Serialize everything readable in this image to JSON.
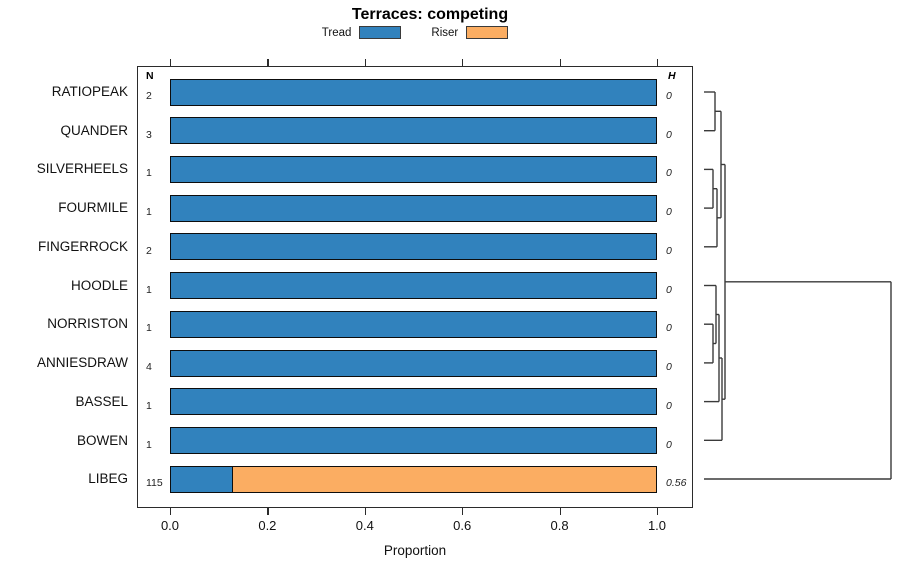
{
  "title": "Terraces: competing",
  "legend": {
    "items": [
      {
        "label": "Tread",
        "color": "#3182bd"
      },
      {
        "label": "Riser",
        "color": "#fbad62"
      }
    ]
  },
  "columns": {
    "n_header": "N",
    "h_header": "H"
  },
  "axis": {
    "label": "Proportion",
    "tick_labels": [
      "0.0",
      "0.2",
      "0.4",
      "0.6",
      "0.8",
      "1.0"
    ]
  },
  "rows": [
    {
      "label": "RATIOPEAK",
      "n": "2",
      "h": "0",
      "tread": 1.0,
      "riser": 0.0
    },
    {
      "label": "QUANDER",
      "n": "3",
      "h": "0",
      "tread": 1.0,
      "riser": 0.0
    },
    {
      "label": "SILVERHEELS",
      "n": "1",
      "h": "0",
      "tread": 1.0,
      "riser": 0.0
    },
    {
      "label": "FOURMILE",
      "n": "1",
      "h": "0",
      "tread": 1.0,
      "riser": 0.0
    },
    {
      "label": "FINGERROCK",
      "n": "2",
      "h": "0",
      "tread": 1.0,
      "riser": 0.0
    },
    {
      "label": "HOODLE",
      "n": "1",
      "h": "0",
      "tread": 1.0,
      "riser": 0.0
    },
    {
      "label": "NORRISTON",
      "n": "1",
      "h": "0",
      "tread": 1.0,
      "riser": 0.0
    },
    {
      "label": "ANNIESDRAW",
      "n": "4",
      "h": "0",
      "tread": 1.0,
      "riser": 0.0
    },
    {
      "label": "BASSEL",
      "n": "1",
      "h": "0",
      "tread": 1.0,
      "riser": 0.0
    },
    {
      "label": "BOWEN",
      "n": "1",
      "h": "0",
      "tread": 1.0,
      "riser": 0.0
    },
    {
      "label": "LIBEG",
      "n": "115",
      "h": "0.56",
      "tread": 0.13,
      "riser": 0.87
    }
  ],
  "chart_data": {
    "type": "bar",
    "subtype": "horizontal-stacked-proportion",
    "title": "Terraces: competing",
    "xlabel": "Proportion",
    "ylabel": "",
    "xlim": [
      0,
      1
    ],
    "x_ticks": [
      0.0,
      0.2,
      0.4,
      0.6,
      0.8,
      1.0
    ],
    "grid": false,
    "legend_position": "top",
    "categories": [
      "RATIOPEAK",
      "QUANDER",
      "SILVERHEELS",
      "FOURMILE",
      "FINGERROCK",
      "HOODLE",
      "NORRISTON",
      "ANNIESDRAW",
      "BASSEL",
      "BOWEN",
      "LIBEG"
    ],
    "series": [
      {
        "name": "Tread",
        "color": "#3182bd",
        "values": [
          1.0,
          1.0,
          1.0,
          1.0,
          1.0,
          1.0,
          1.0,
          1.0,
          1.0,
          1.0,
          0.13
        ]
      },
      {
        "name": "Riser",
        "color": "#fbad62",
        "values": [
          0.0,
          0.0,
          0.0,
          0.0,
          0.0,
          0.0,
          0.0,
          0.0,
          0.0,
          0.0,
          0.87
        ]
      }
    ],
    "N_column": [
      2,
      3,
      1,
      1,
      2,
      1,
      1,
      4,
      1,
      1,
      115
    ],
    "H_column": [
      0,
      0,
      0,
      0,
      0,
      0,
      0,
      0,
      0,
      0,
      0.56
    ],
    "right_dendrogram": true
  },
  "dendrogram": {
    "stroke": "#3a3a3a",
    "segments": [
      [
        9,
        32,
        20,
        32
      ],
      [
        9,
        70.7,
        20,
        70.7
      ],
      [
        20,
        32,
        20,
        70.7
      ],
      [
        20,
        51.3,
        26,
        51.3
      ],
      [
        9,
        109.4,
        18,
        109.4
      ],
      [
        9,
        148.1,
        18,
        148.1
      ],
      [
        18,
        109.4,
        18,
        148.1
      ],
      [
        18,
        128.7,
        22,
        128.7
      ],
      [
        9,
        186.8,
        22,
        186.8
      ],
      [
        22,
        128.7,
        22,
        186.8
      ],
      [
        22,
        157.8,
        26,
        157.8
      ],
      [
        26,
        51.3,
        26,
        157.8
      ],
      [
        26,
        104.5,
        30,
        104.5
      ],
      [
        9,
        225.5,
        21,
        225.5
      ],
      [
        9,
        264.2,
        18,
        264.2
      ],
      [
        9,
        302.9,
        18,
        302.9
      ],
      [
        18,
        264.2,
        18,
        302.9
      ],
      [
        18,
        283.5,
        21,
        283.5
      ],
      [
        21,
        225.5,
        21,
        283.5
      ],
      [
        21,
        254.5,
        24,
        254.5
      ],
      [
        9,
        341.6,
        24,
        341.6
      ],
      [
        24,
        254.5,
        24,
        341.6
      ],
      [
        24,
        298,
        27,
        298
      ],
      [
        9,
        380.3,
        27,
        380.3
      ],
      [
        27,
        298,
        27,
        380.3
      ],
      [
        27,
        339.2,
        30,
        339.2
      ],
      [
        30,
        104.5,
        30,
        339.2
      ],
      [
        30,
        221.8,
        196,
        221.8
      ],
      [
        9,
        419,
        196,
        419
      ],
      [
        196,
        221.8,
        196,
        419
      ]
    ]
  }
}
